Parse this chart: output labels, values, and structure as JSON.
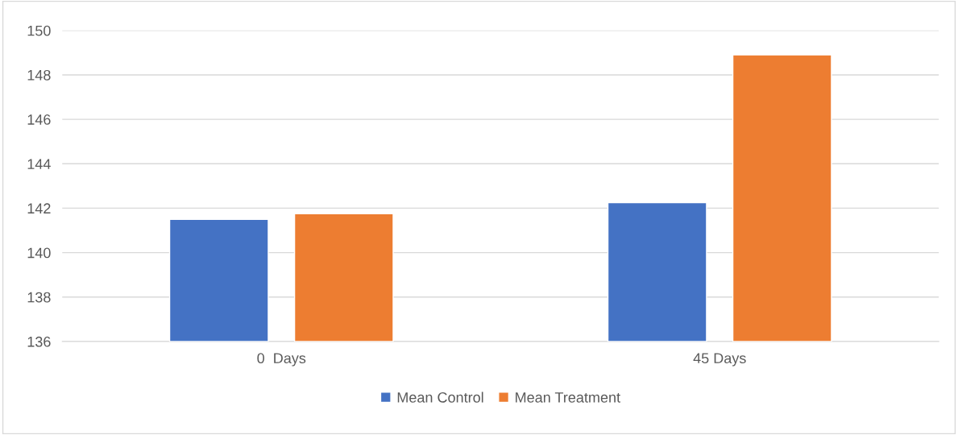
{
  "chart_data": {
    "type": "bar",
    "categories": [
      "0  Days",
      "45 Days"
    ],
    "series": [
      {
        "name": "Mean Control",
        "color": "#4472c4",
        "values": [
          141.5,
          142.25
        ]
      },
      {
        "name": "Mean Treatment",
        "color": "#ed7d31",
        "values": [
          141.75,
          148.9
        ]
      }
    ],
    "ylim": [
      136,
      150
    ],
    "yticks": [
      136,
      138,
      140,
      142,
      144,
      146,
      148,
      150
    ],
    "grid": "y",
    "legend": "bottom"
  }
}
